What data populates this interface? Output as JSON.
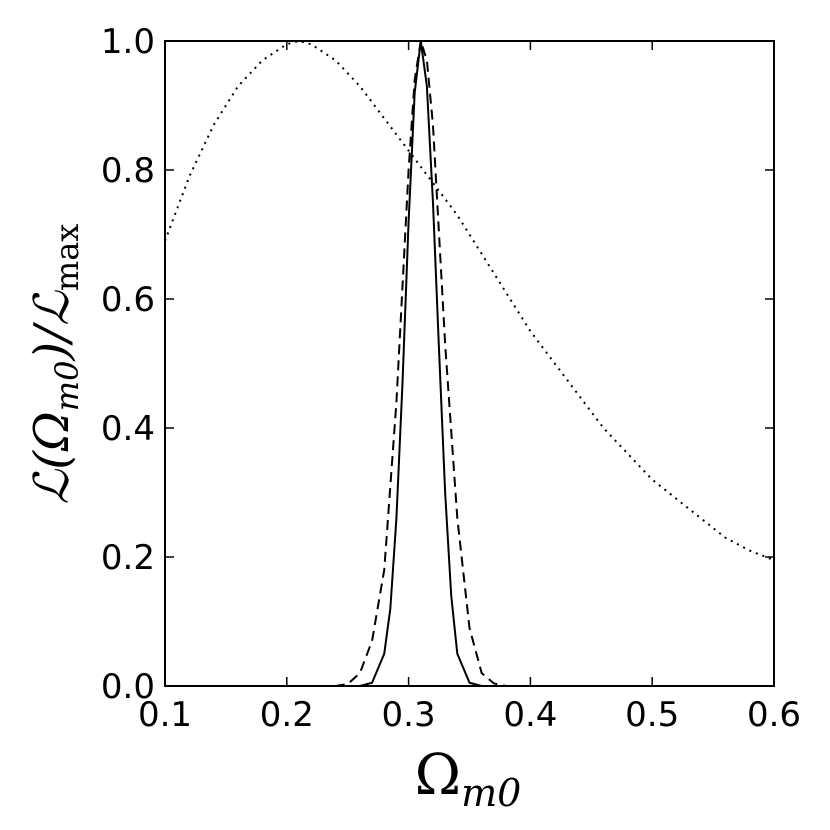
{
  "chart_data": {
    "type": "line",
    "xlabel": "Ω",
    "xlabel_sub": "m0",
    "ylabel_main": "ℒ(Ω",
    "ylabel_sub1": "m0",
    "ylabel_mid": ")/ℒ",
    "ylabel_sub2": "max",
    "xlim": [
      0.1,
      0.6
    ],
    "ylim": [
      0.0,
      1.0
    ],
    "xticks": [
      "0.1",
      "0.2",
      "0.3",
      "0.4",
      "0.5",
      "0.6"
    ],
    "yticks": [
      "0.0",
      "0.2",
      "0.4",
      "0.6",
      "0.8",
      "1.0"
    ],
    "grid": false,
    "legend": "none",
    "line_color": "#000000",
    "series": [
      {
        "style": "solid",
        "x": [
          0.2,
          0.24,
          0.26,
          0.27,
          0.28,
          0.285,
          0.29,
          0.295,
          0.3,
          0.305,
          0.31,
          0.315,
          0.32,
          0.325,
          0.33,
          0.335,
          0.34,
          0.35,
          0.36,
          0.4
        ],
        "y": [
          0.0,
          0.0,
          0.0,
          0.005,
          0.05,
          0.12,
          0.26,
          0.47,
          0.72,
          0.92,
          1.0,
          0.93,
          0.75,
          0.52,
          0.3,
          0.14,
          0.05,
          0.005,
          0.0,
          0.0
        ]
      },
      {
        "style": "dashed",
        "x": [
          0.2,
          0.24,
          0.25,
          0.26,
          0.27,
          0.28,
          0.29,
          0.3,
          0.305,
          0.31,
          0.315,
          0.32,
          0.325,
          0.33,
          0.34,
          0.35,
          0.36,
          0.37,
          0.38,
          0.4
        ],
        "y": [
          0.0,
          0.0,
          0.003,
          0.02,
          0.07,
          0.18,
          0.44,
          0.8,
          0.94,
          1.0,
          0.97,
          0.87,
          0.7,
          0.53,
          0.26,
          0.09,
          0.02,
          0.004,
          0.0,
          0.0
        ]
      },
      {
        "style": "dotted",
        "x": [
          0.1,
          0.12,
          0.14,
          0.16,
          0.18,
          0.2,
          0.21,
          0.22,
          0.24,
          0.26,
          0.28,
          0.3,
          0.32,
          0.34,
          0.36,
          0.38,
          0.4,
          0.42,
          0.44,
          0.46,
          0.48,
          0.5,
          0.52,
          0.54,
          0.56,
          0.58,
          0.6
        ],
        "y": [
          0.69,
          0.79,
          0.87,
          0.93,
          0.97,
          0.995,
          1.0,
          0.995,
          0.97,
          0.93,
          0.88,
          0.83,
          0.78,
          0.73,
          0.67,
          0.61,
          0.55,
          0.5,
          0.45,
          0.4,
          0.36,
          0.32,
          0.29,
          0.26,
          0.23,
          0.21,
          0.195
        ]
      }
    ]
  }
}
